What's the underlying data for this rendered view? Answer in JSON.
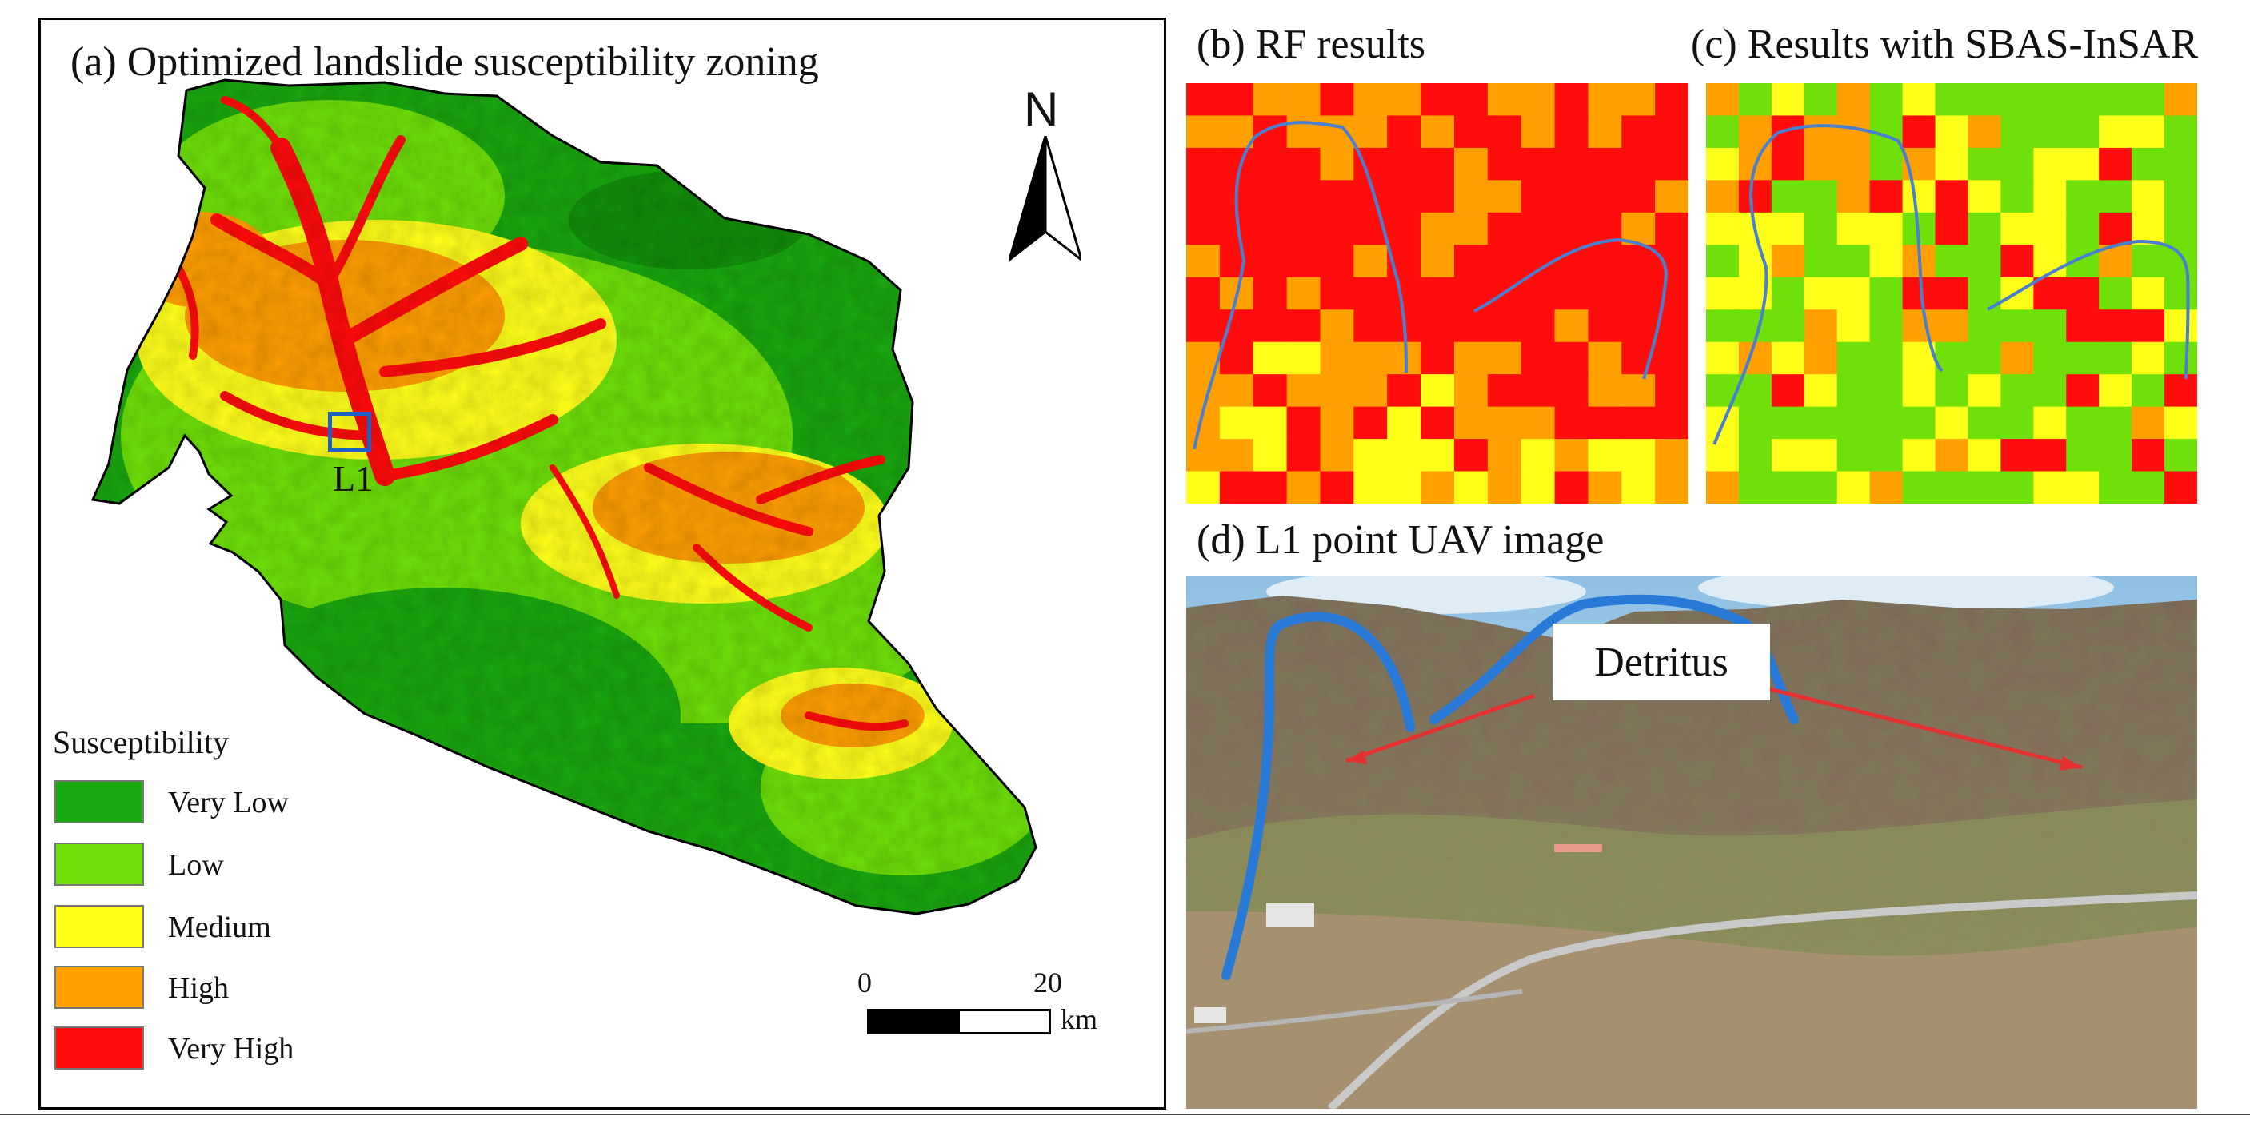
{
  "panel_a": {
    "title": "(a) Optimized landslide susceptibility zoning",
    "site_label": "L1",
    "north_label": "N",
    "legend": {
      "title": "Susceptibility",
      "items": [
        {
          "label": "Very Low",
          "color": "#1aa80f"
        },
        {
          "label": "Low",
          "color": "#6fe00a"
        },
        {
          "label": "Medium",
          "color": "#ffff1a"
        },
        {
          "label": "High",
          "color": "#ff9f00"
        },
        {
          "label": "Very High",
          "color": "#ff0c0c"
        }
      ]
    },
    "scale_bar": {
      "start": "0",
      "end": "20",
      "unit": "km"
    }
  },
  "panel_b": {
    "title": "(b) RF  results"
  },
  "panel_c": {
    "title": "(c) Results with SBAS-InSAR"
  },
  "panel_d": {
    "title": "(d) L1 point UAV image",
    "annotation": "Detritus"
  },
  "colors": {
    "boundary_line": "#4a7fd0",
    "arrow": "#e53030",
    "site_box": "#1f5fc8"
  }
}
